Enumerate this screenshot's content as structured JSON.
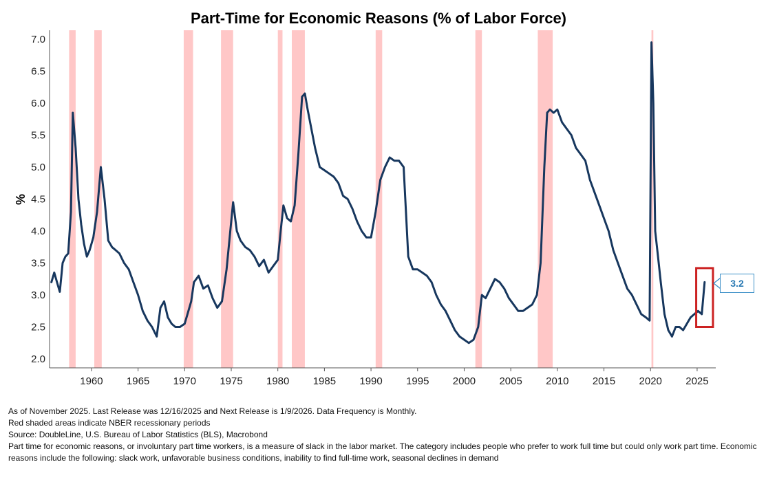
{
  "chart_data": {
    "type": "line",
    "title": "Part-Time for Economic Reasons (% of Labor Force)",
    "ylabel": "%",
    "xlabel": "",
    "ylim": [
      2.0,
      7.0
    ],
    "xlim": [
      1955.5,
      2027.0
    ],
    "yticks": [
      "2.0",
      "2.5",
      "3.0",
      "3.5",
      "4.0",
      "4.5",
      "5.0",
      "5.5",
      "6.0",
      "6.5",
      "7.0"
    ],
    "xticks": [
      "1960",
      "1965",
      "1970",
      "1975",
      "1980",
      "1985",
      "1990",
      "1995",
      "2000",
      "2005",
      "2010",
      "2015",
      "2020",
      "2025"
    ],
    "grid": false,
    "recessions": [
      [
        1957.6,
        1958.3
      ],
      [
        1960.3,
        1961.1
      ],
      [
        1969.9,
        1970.9
      ],
      [
        1973.9,
        1975.2
      ],
      [
        1980.0,
        1980.5
      ],
      [
        1981.5,
        1982.9
      ],
      [
        1990.5,
        1991.2
      ],
      [
        2001.2,
        2001.9
      ],
      [
        2007.9,
        2009.5
      ],
      [
        2020.1,
        2020.3
      ]
    ],
    "series": [
      {
        "x": [
          1955.7,
          1956.0,
          1956.3,
          1956.6,
          1956.9,
          1957.2,
          1957.5,
          1957.8,
          1958.0,
          1958.3,
          1958.6,
          1958.9,
          1959.2,
          1959.5,
          1959.8,
          1960.2,
          1960.6,
          1961.0,
          1961.4,
          1961.8,
          1962.2,
          1962.6,
          1963.0,
          1963.5,
          1964.0,
          1964.5,
          1965.0,
          1965.5,
          1966.0,
          1966.5,
          1967.0,
          1967.4,
          1967.8,
          1968.2,
          1968.6,
          1969.0,
          1969.5,
          1970.0,
          1970.3,
          1970.7,
          1971.0,
          1971.5,
          1972.0,
          1972.5,
          1973.0,
          1973.5,
          1974.0,
          1974.5,
          1974.9,
          1975.2,
          1975.6,
          1976.0,
          1976.5,
          1977.0,
          1977.5,
          1978.0,
          1978.5,
          1979.0,
          1979.5,
          1980.0,
          1980.3,
          1980.6,
          1981.0,
          1981.4,
          1981.8,
          1982.2,
          1982.6,
          1982.9,
          1983.2,
          1983.6,
          1984.0,
          1984.5,
          1985.0,
          1985.5,
          1986.0,
          1986.5,
          1987.0,
          1987.5,
          1988.0,
          1988.5,
          1989.0,
          1989.5,
          1990.0,
          1990.5,
          1991.0,
          1991.5,
          1992.0,
          1992.5,
          1993.0,
          1993.5,
          1994.0,
          1994.5,
          1995.0,
          1995.5,
          1996.0,
          1996.5,
          1997.0,
          1997.5,
          1998.0,
          1998.5,
          1999.0,
          1999.5,
          2000.0,
          2000.5,
          2001.0,
          2001.5,
          2001.9,
          2002.3,
          2002.8,
          2003.3,
          2003.8,
          2004.3,
          2004.8,
          2005.3,
          2005.8,
          2006.3,
          2006.8,
          2007.3,
          2007.8,
          2008.2,
          2008.6,
          2008.9,
          2009.2,
          2009.6,
          2010.0,
          2010.5,
          2011.0,
          2011.5,
          2012.0,
          2012.5,
          2013.0,
          2013.5,
          2014.0,
          2014.5,
          2015.0,
          2015.5,
          2016.0,
          2016.5,
          2017.0,
          2017.5,
          2018.0,
          2018.5,
          2019.0,
          2019.5,
          2019.9,
          2020.1,
          2020.3,
          2020.5,
          2020.8,
          2021.1,
          2021.5,
          2021.9,
          2022.3,
          2022.7,
          2023.1,
          2023.5,
          2023.9,
          2024.3,
          2024.7,
          2025.1,
          2025.5,
          2025.8
        ],
        "values": [
          3.2,
          3.35,
          3.2,
          3.05,
          3.5,
          3.6,
          3.65,
          4.3,
          5.85,
          5.3,
          4.5,
          4.1,
          3.8,
          3.6,
          3.7,
          3.9,
          4.3,
          5.0,
          4.5,
          3.85,
          3.75,
          3.7,
          3.65,
          3.5,
          3.4,
          3.2,
          3.0,
          2.75,
          2.6,
          2.5,
          2.35,
          2.8,
          2.9,
          2.65,
          2.55,
          2.5,
          2.5,
          2.55,
          2.7,
          2.9,
          3.2,
          3.3,
          3.1,
          3.15,
          2.95,
          2.8,
          2.9,
          3.4,
          4.0,
          4.45,
          4.0,
          3.85,
          3.75,
          3.7,
          3.6,
          3.45,
          3.55,
          3.35,
          3.45,
          3.55,
          4.0,
          4.4,
          4.2,
          4.15,
          4.4,
          5.2,
          6.1,
          6.15,
          5.9,
          5.6,
          5.3,
          5.0,
          4.95,
          4.9,
          4.85,
          4.75,
          4.55,
          4.5,
          4.35,
          4.15,
          4.0,
          3.9,
          3.9,
          4.3,
          4.8,
          5.0,
          5.15,
          5.1,
          5.1,
          5.0,
          3.6,
          3.4,
          3.4,
          3.35,
          3.3,
          3.2,
          3.0,
          2.85,
          2.75,
          2.6,
          2.45,
          2.35,
          2.3,
          2.25,
          2.3,
          2.5,
          3.0,
          2.95,
          3.1,
          3.25,
          3.2,
          3.1,
          2.95,
          2.85,
          2.75,
          2.75,
          2.8,
          2.85,
          3.0,
          3.5,
          5.0,
          5.85,
          5.9,
          5.85,
          5.9,
          5.7,
          5.6,
          5.5,
          5.3,
          5.2,
          5.1,
          4.8,
          4.6,
          4.4,
          4.2,
          4.0,
          3.7,
          3.5,
          3.3,
          3.1,
          3.0,
          2.85,
          2.7,
          2.65,
          2.6,
          6.95,
          6.0,
          4.0,
          3.6,
          3.2,
          2.7,
          2.45,
          2.35,
          2.5,
          2.5,
          2.45,
          2.55,
          2.65,
          2.7,
          2.75,
          2.7,
          3.2
        ]
      }
    ],
    "highlight": {
      "x_range": [
        2024.9,
        2026.7
      ],
      "y_range": [
        2.5,
        3.42
      ],
      "color": "#cc2222"
    },
    "colors": {
      "line": "#17375e",
      "recession": "#ffc7c7",
      "axis": "#555555"
    }
  },
  "annotation": {
    "callout_value": "3.2"
  },
  "footnotes": [
    "As of November 2025. Last Release was 12/16/2025 and Next Release is 1/9/2026. Data Frequency is Monthly.",
    "Red shaded areas indicate NBER recessionary periods",
    "Source: DoubleLine, U.S. Bureau of Labor Statistics (BLS), Macrobond",
    "Part time for economic reasons, or involuntary part time workers, is a measure of slack in the labor market.  The category includes people who prefer to work full time but could only work part time. Economic reasons include the following: slack work, unfavorable business conditions, inability to find full-time work, seasonal declines in demand"
  ]
}
